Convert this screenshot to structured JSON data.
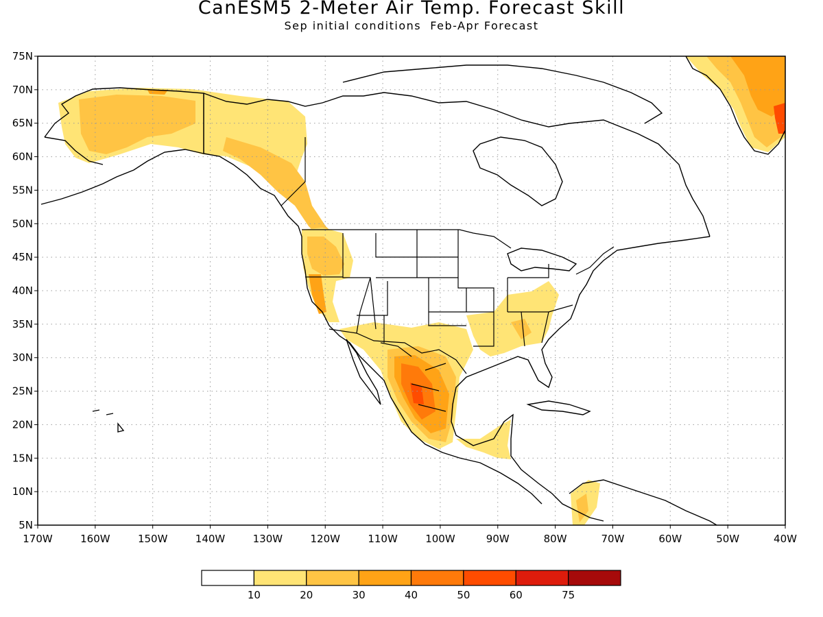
{
  "header": {
    "title": "CanESM5 2-Meter Air Temp. Forecast Skill",
    "subtitle": "Sep initial conditions  Feb-Apr Forecast"
  },
  "map": {
    "type": "geographic-contour",
    "lon_range": [
      -170,
      -40
    ],
    "lat_range": [
      5,
      75
    ],
    "lat_labels": [
      "5N",
      "10N",
      "15N",
      "20N",
      "25N",
      "30N",
      "35N",
      "40N",
      "45N",
      "50N",
      "55N",
      "60N",
      "65N",
      "70N",
      "75N"
    ],
    "lon_labels": [
      "170W",
      "160W",
      "150W",
      "140W",
      "130W",
      "120W",
      "110W",
      "100W",
      "90W",
      "80W",
      "70W",
      "60W",
      "50W",
      "40W"
    ],
    "gridlines": "dotted",
    "skill_regions": [
      {
        "name": "Alaska-Yukon",
        "level": "10-20"
      },
      {
        "name": "Alaska interior",
        "level": "20-30"
      },
      {
        "name": "British Columbia coast",
        "level": "20-30"
      },
      {
        "name": "Pacific Northwest",
        "level": "20-40"
      },
      {
        "name": "California",
        "level": "10-30"
      },
      {
        "name": "Northern Mexico",
        "level": "30-40"
      },
      {
        "name": "Central Mexico",
        "level": "40-50"
      },
      {
        "name": "Southeastern United States",
        "level": "10-20"
      },
      {
        "name": "Central America",
        "level": "10-20"
      },
      {
        "name": "Greenland coast",
        "level": "20-50"
      }
    ]
  },
  "colorbar": {
    "colors": [
      "#ffffff",
      "#ffe475",
      "#ffc444",
      "#ffa316",
      "#ff7a0a",
      "#ff4c00",
      "#de1c0c",
      "#a60a0a"
    ],
    "labels": [
      "10",
      "20",
      "30",
      "40",
      "50",
      "60",
      "75"
    ]
  }
}
